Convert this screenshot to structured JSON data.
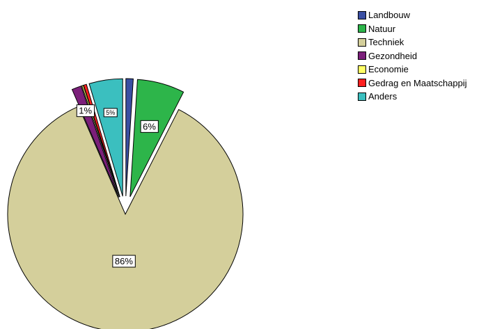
{
  "chart_data": {
    "type": "pie",
    "title": "",
    "categories": [
      "Landbouw",
      "Natuur",
      "Techniek",
      "Gezondheid",
      "Economie",
      "Gedrag en Maatschappij",
      "Anders"
    ],
    "values": [
      1.0,
      6.5,
      86.0,
      1.3,
      0.2,
      0.4,
      4.6
    ],
    "colors": [
      "#3a4fa3",
      "#2db54a",
      "#d4cf9b",
      "#7b1f7a",
      "#ffff66",
      "#ff2020",
      "#3bbfbf"
    ],
    "exploded": [
      true,
      true,
      false,
      true,
      true,
      true,
      true
    ],
    "data_labels": [
      {
        "category": "Natuur",
        "text": "6%"
      },
      {
        "category": "Techniek",
        "text": "86%"
      },
      {
        "category": "Gezondheid",
        "text": "1%"
      },
      {
        "category": "Anders",
        "text": "5%"
      }
    ],
    "legend_position": "top-right"
  }
}
